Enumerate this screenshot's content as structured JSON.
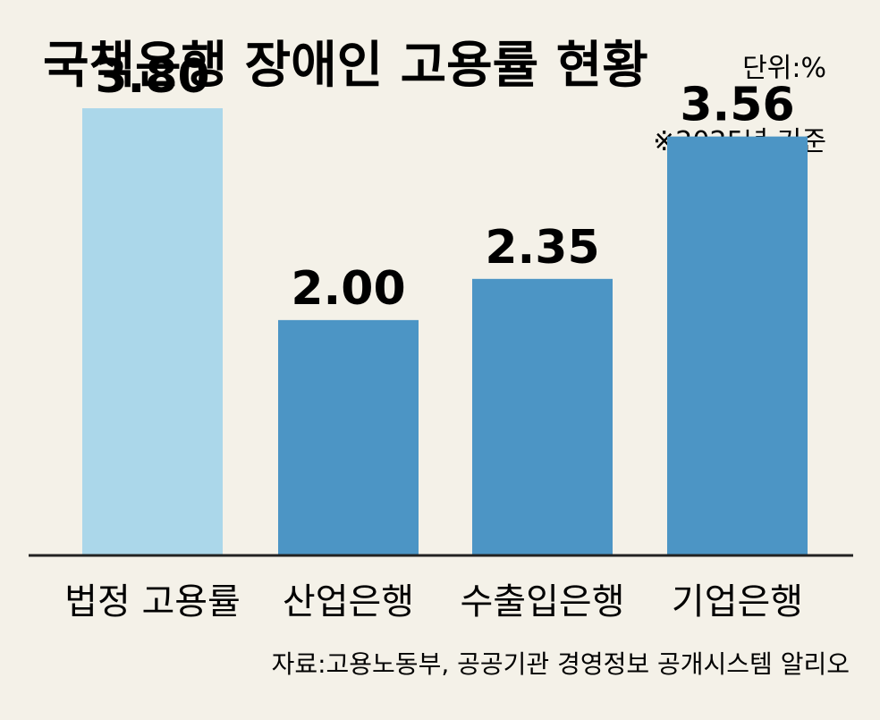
{
  "chart_data": {
    "type": "bar",
    "title": "국책은행 장애인 고용률 현황",
    "unit": "단위:%",
    "note": "※2025년 기준",
    "source": "자료:고용노동부, 공공기관 경영정보 공개시스템 알리오",
    "categories": [
      "법정 고용률",
      "산업은행",
      "수출입은행",
      "기업은행"
    ],
    "values": [
      3.8,
      2.0,
      2.35,
      3.56
    ],
    "value_labels": [
      "3.80",
      "2.00",
      "2.35",
      "3.56"
    ],
    "ylim": [
      0,
      4.72
    ],
    "grid": false,
    "legend": "none",
    "colors": {
      "benchmark": "#abd7ea",
      "bank": "#4c95c5",
      "background": "#f4f1e8",
      "axis": "#222222",
      "text": "#1a1a1a"
    }
  }
}
